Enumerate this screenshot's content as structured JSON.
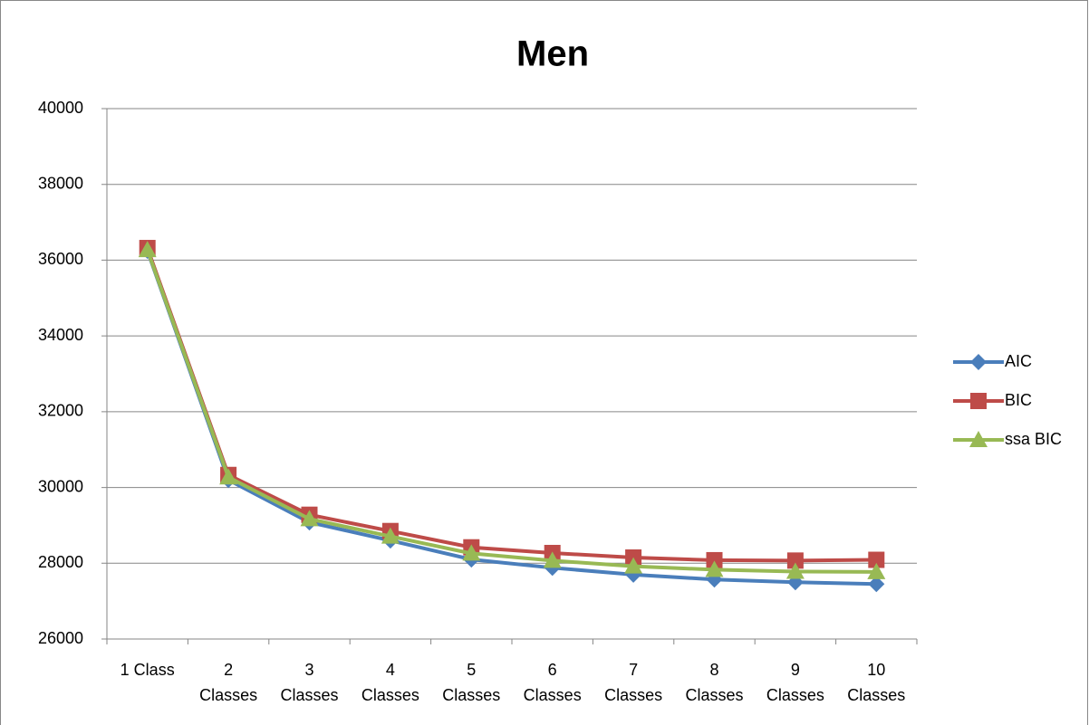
{
  "chart_data": {
    "type": "line",
    "title": "Men",
    "categories": [
      "1 Class",
      "2 Classes",
      "3 Classes",
      "4 Classes",
      "5 Classes",
      "6 Classes",
      "7 Classes",
      "8 Classes",
      "9 Classes",
      "10 Classes"
    ],
    "series": [
      {
        "name": "AIC",
        "color": "#4a7ebb",
        "marker": "diamond",
        "values": [
          36250,
          30200,
          29080,
          28600,
          28100,
          27880,
          27700,
          27570,
          27500,
          27450
        ]
      },
      {
        "name": "BIC",
        "color": "#be4b48",
        "marker": "square",
        "values": [
          36320,
          30330,
          29280,
          28850,
          28420,
          28270,
          28150,
          28080,
          28070,
          28090
        ]
      },
      {
        "name": "ssa BIC",
        "color": "#98b954",
        "marker": "triangle",
        "values": [
          36270,
          30270,
          29170,
          28710,
          28260,
          28070,
          27920,
          27830,
          27780,
          27770
        ]
      }
    ],
    "ylim": [
      26000,
      40000
    ],
    "yticks": [
      26000,
      28000,
      30000,
      32000,
      34000,
      36000,
      38000,
      40000
    ],
    "grid": true,
    "legend": "right"
  }
}
